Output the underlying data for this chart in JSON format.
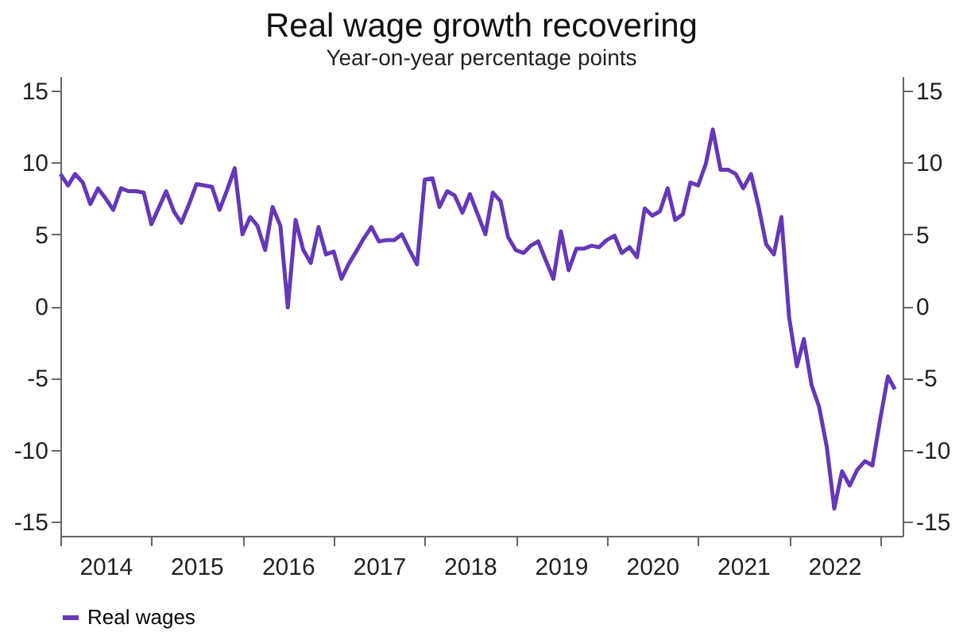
{
  "chart_data": {
    "type": "line",
    "title": "Real wage growth recovering",
    "subtitle": "Year-on-year percentage points",
    "x": [
      "2014-01",
      "2014-02",
      "2014-03",
      "2014-04",
      "2014-05",
      "2014-06",
      "2014-07",
      "2014-08",
      "2014-09",
      "2014-10",
      "2014-11",
      "2014-12",
      "2015-01",
      "2015-02",
      "2015-03",
      "2015-04",
      "2015-05",
      "2015-06",
      "2015-07",
      "2015-08",
      "2015-09",
      "2015-10",
      "2015-11",
      "2015-12",
      "2016-01",
      "2016-02",
      "2016-03",
      "2016-04",
      "2016-05",
      "2016-06",
      "2016-07",
      "2016-08",
      "2016-09",
      "2016-10",
      "2016-11",
      "2016-12",
      "2017-01",
      "2017-02",
      "2017-03",
      "2017-04",
      "2017-05",
      "2017-06",
      "2017-07",
      "2017-08",
      "2017-09",
      "2017-10",
      "2017-11",
      "2017-12",
      "2018-01",
      "2018-02",
      "2018-03",
      "2018-04",
      "2018-05",
      "2018-06",
      "2018-07",
      "2018-08",
      "2018-09",
      "2018-10",
      "2018-11",
      "2018-12",
      "2019-01",
      "2019-02",
      "2019-03",
      "2019-04",
      "2019-05",
      "2019-06",
      "2019-07",
      "2019-08",
      "2019-09",
      "2019-10",
      "2019-11",
      "2019-12",
      "2020-01",
      "2020-02",
      "2020-03",
      "2020-04",
      "2020-05",
      "2020-06",
      "2020-07",
      "2020-08",
      "2020-09",
      "2020-10",
      "2020-11",
      "2020-12",
      "2021-01",
      "2021-02",
      "2021-03",
      "2021-04",
      "2021-05",
      "2021-06",
      "2021-07",
      "2021-08",
      "2021-09",
      "2021-10",
      "2021-11",
      "2021-12",
      "2022-01",
      "2022-02",
      "2022-03",
      "2022-04",
      "2022-05",
      "2022-06",
      "2022-07",
      "2022-08",
      "2022-09",
      "2022-10",
      "2022-11",
      "2022-12",
      "2023-01",
      "2023-02",
      "2023-03"
    ],
    "series": [
      {
        "name": "Real wages",
        "color": "#6438b8",
        "values": [
          9.2,
          8.4,
          9.2,
          8.6,
          7.1,
          8.2,
          7.5,
          6.7,
          8.2,
          8.0,
          8.0,
          7.9,
          5.7,
          6.9,
          8.0,
          6.6,
          5.8,
          7.1,
          8.5,
          8.4,
          8.3,
          6.7,
          8.1,
          9.6,
          5.0,
          6.2,
          5.6,
          3.9,
          6.9,
          5.6,
          -0.1,
          6.0,
          3.9,
          3.0,
          5.5,
          3.6,
          3.8,
          1.9,
          2.9,
          3.8,
          4.7,
          5.5,
          4.5,
          4.6,
          4.6,
          5.0,
          3.9,
          2.9,
          8.8,
          8.9,
          6.9,
          8.0,
          7.7,
          6.5,
          7.8,
          6.4,
          5.0,
          7.9,
          7.3,
          4.8,
          3.9,
          3.7,
          4.2,
          4.5,
          3.2,
          1.9,
          5.2,
          2.5,
          4.0,
          4.0,
          4.2,
          4.1,
          4.6,
          4.9,
          3.7,
          4.1,
          3.4,
          6.8,
          6.3,
          6.6,
          8.2,
          6.0,
          6.4,
          8.6,
          8.4,
          9.9,
          12.3,
          9.5,
          9.5,
          9.2,
          8.2,
          9.2,
          6.9,
          4.3,
          3.6,
          6.2,
          -0.8,
          -4.2,
          -2.3,
          -5.5,
          -7.0,
          -9.8,
          -14.1,
          -11.5,
          -12.5,
          -11.4,
          -10.8,
          -11.1,
          -7.9,
          -4.9,
          -5.8
        ]
      }
    ],
    "xlim": [
      "2014-01-01",
      "2023-04-01"
    ],
    "xticks": [
      {
        "value": "2014-01-01",
        "label": null
      },
      {
        "value": "2014-07-01",
        "label": "2014"
      },
      {
        "value": "2015-01-01",
        "label": null
      },
      {
        "value": "2015-07-01",
        "label": "2015"
      },
      {
        "value": "2016-01-01",
        "label": null
      },
      {
        "value": "2016-07-01",
        "label": "2016"
      },
      {
        "value": "2017-01-01",
        "label": null
      },
      {
        "value": "2017-07-01",
        "label": "2017"
      },
      {
        "value": "2018-01-01",
        "label": null
      },
      {
        "value": "2018-07-01",
        "label": "2018"
      },
      {
        "value": "2019-01-01",
        "label": null
      },
      {
        "value": "2019-07-01",
        "label": "2019"
      },
      {
        "value": "2020-01-01",
        "label": null
      },
      {
        "value": "2020-07-01",
        "label": "2020"
      },
      {
        "value": "2021-01-01",
        "label": null
      },
      {
        "value": "2021-07-01",
        "label": "2021"
      },
      {
        "value": "2022-01-01",
        "label": null
      },
      {
        "value": "2022-07-01",
        "label": "2022"
      },
      {
        "value": "2023-01-01",
        "label": null
      }
    ],
    "ylim": [
      -16,
      16
    ],
    "yticks": [
      -15,
      -10,
      -5,
      0,
      5,
      10,
      15
    ],
    "y2lim": [
      -16,
      16
    ],
    "y2ticks": [
      -15,
      -10,
      -5,
      0,
      5,
      10,
      15
    ],
    "grid": false,
    "legend": "bottom left",
    "line_style": "solid",
    "marker": "none"
  }
}
